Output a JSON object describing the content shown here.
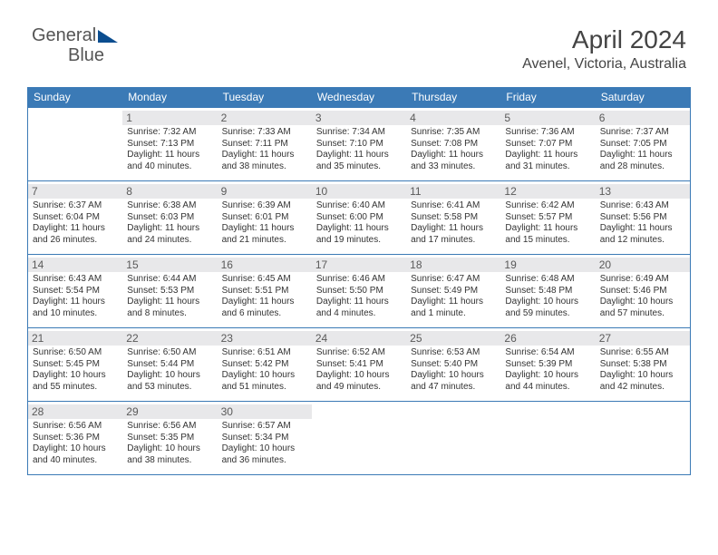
{
  "logo": {
    "text1": "General",
    "text2": "Blue"
  },
  "title": "April 2024",
  "location": "Avenel, Victoria, Australia",
  "colors": {
    "header_bg": "#3b7ab6",
    "header_fg": "#ffffff",
    "border": "#3b7ab6",
    "daynum_bg": "#e8e8ea",
    "daynum_fg": "#5a5a5a",
    "text": "#333333",
    "logo_shape": "#0b4d8f"
  },
  "typography": {
    "title_fontsize": 28,
    "location_fontsize": 16,
    "header_fontsize": 12,
    "daynum_fontsize": 12,
    "body_fontsize": 10,
    "logo_fontsize": 20
  },
  "dayNames": [
    "Sunday",
    "Monday",
    "Tuesday",
    "Wednesday",
    "Thursday",
    "Friday",
    "Saturday"
  ],
  "weeks": [
    [
      null,
      {
        "n": "1",
        "sr": "7:32 AM",
        "ss": "7:13 PM",
        "dl": "11 hours and 40 minutes."
      },
      {
        "n": "2",
        "sr": "7:33 AM",
        "ss": "7:11 PM",
        "dl": "11 hours and 38 minutes."
      },
      {
        "n": "3",
        "sr": "7:34 AM",
        "ss": "7:10 PM",
        "dl": "11 hours and 35 minutes."
      },
      {
        "n": "4",
        "sr": "7:35 AM",
        "ss": "7:08 PM",
        "dl": "11 hours and 33 minutes."
      },
      {
        "n": "5",
        "sr": "7:36 AM",
        "ss": "7:07 PM",
        "dl": "11 hours and 31 minutes."
      },
      {
        "n": "6",
        "sr": "7:37 AM",
        "ss": "7:05 PM",
        "dl": "11 hours and 28 minutes."
      }
    ],
    [
      {
        "n": "7",
        "sr": "6:37 AM",
        "ss": "6:04 PM",
        "dl": "11 hours and 26 minutes."
      },
      {
        "n": "8",
        "sr": "6:38 AM",
        "ss": "6:03 PM",
        "dl": "11 hours and 24 minutes."
      },
      {
        "n": "9",
        "sr": "6:39 AM",
        "ss": "6:01 PM",
        "dl": "11 hours and 21 minutes."
      },
      {
        "n": "10",
        "sr": "6:40 AM",
        "ss": "6:00 PM",
        "dl": "11 hours and 19 minutes."
      },
      {
        "n": "11",
        "sr": "6:41 AM",
        "ss": "5:58 PM",
        "dl": "11 hours and 17 minutes."
      },
      {
        "n": "12",
        "sr": "6:42 AM",
        "ss": "5:57 PM",
        "dl": "11 hours and 15 minutes."
      },
      {
        "n": "13",
        "sr": "6:43 AM",
        "ss": "5:56 PM",
        "dl": "11 hours and 12 minutes."
      }
    ],
    [
      {
        "n": "14",
        "sr": "6:43 AM",
        "ss": "5:54 PM",
        "dl": "11 hours and 10 minutes."
      },
      {
        "n": "15",
        "sr": "6:44 AM",
        "ss": "5:53 PM",
        "dl": "11 hours and 8 minutes."
      },
      {
        "n": "16",
        "sr": "6:45 AM",
        "ss": "5:51 PM",
        "dl": "11 hours and 6 minutes."
      },
      {
        "n": "17",
        "sr": "6:46 AM",
        "ss": "5:50 PM",
        "dl": "11 hours and 4 minutes."
      },
      {
        "n": "18",
        "sr": "6:47 AM",
        "ss": "5:49 PM",
        "dl": "11 hours and 1 minute."
      },
      {
        "n": "19",
        "sr": "6:48 AM",
        "ss": "5:48 PM",
        "dl": "10 hours and 59 minutes."
      },
      {
        "n": "20",
        "sr": "6:49 AM",
        "ss": "5:46 PM",
        "dl": "10 hours and 57 minutes."
      }
    ],
    [
      {
        "n": "21",
        "sr": "6:50 AM",
        "ss": "5:45 PM",
        "dl": "10 hours and 55 minutes."
      },
      {
        "n": "22",
        "sr": "6:50 AM",
        "ss": "5:44 PM",
        "dl": "10 hours and 53 minutes."
      },
      {
        "n": "23",
        "sr": "6:51 AM",
        "ss": "5:42 PM",
        "dl": "10 hours and 51 minutes."
      },
      {
        "n": "24",
        "sr": "6:52 AM",
        "ss": "5:41 PM",
        "dl": "10 hours and 49 minutes."
      },
      {
        "n": "25",
        "sr": "6:53 AM",
        "ss": "5:40 PM",
        "dl": "10 hours and 47 minutes."
      },
      {
        "n": "26",
        "sr": "6:54 AM",
        "ss": "5:39 PM",
        "dl": "10 hours and 44 minutes."
      },
      {
        "n": "27",
        "sr": "6:55 AM",
        "ss": "5:38 PM",
        "dl": "10 hours and 42 minutes."
      }
    ],
    [
      {
        "n": "28",
        "sr": "6:56 AM",
        "ss": "5:36 PM",
        "dl": "10 hours and 40 minutes."
      },
      {
        "n": "29",
        "sr": "6:56 AM",
        "ss": "5:35 PM",
        "dl": "10 hours and 38 minutes."
      },
      {
        "n": "30",
        "sr": "6:57 AM",
        "ss": "5:34 PM",
        "dl": "10 hours and 36 minutes."
      },
      null,
      null,
      null,
      null
    ]
  ],
  "labels": {
    "sunrise": "Sunrise:",
    "sunset": "Sunset:",
    "daylight": "Daylight:"
  }
}
